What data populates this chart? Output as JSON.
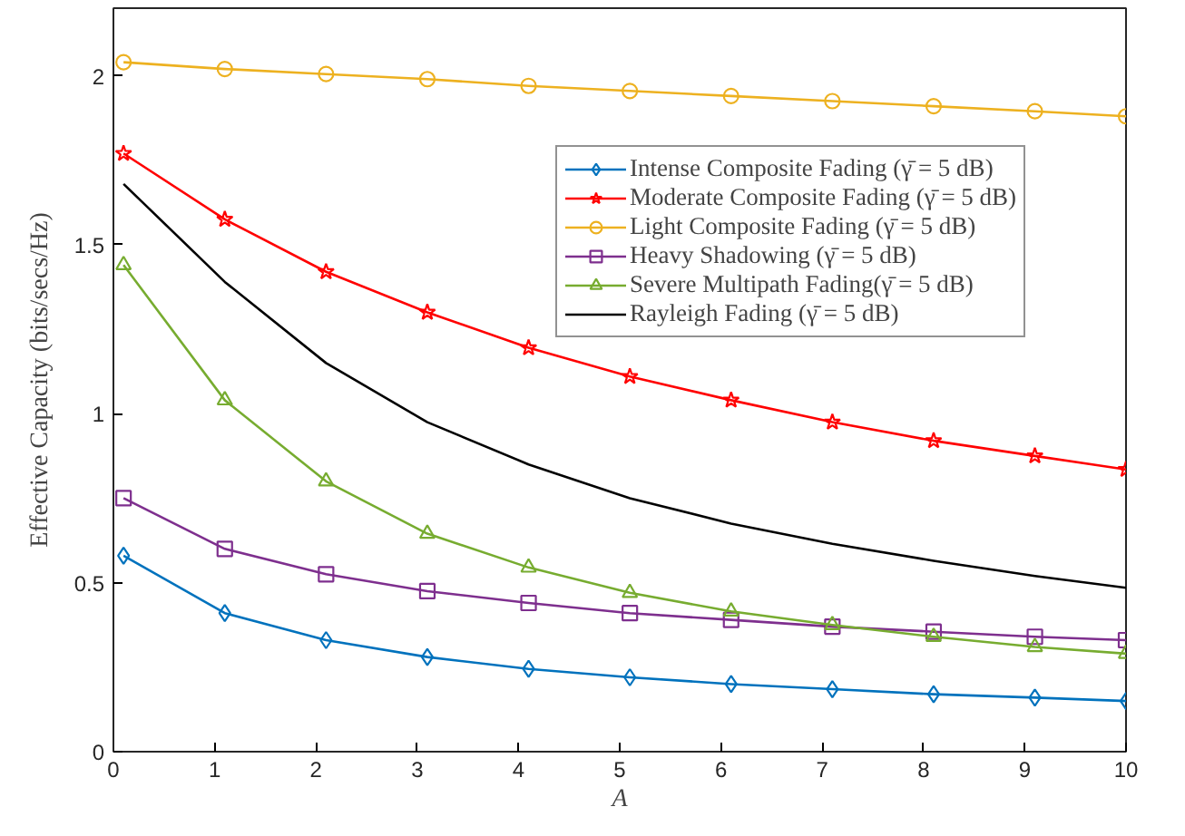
{
  "chart_data": {
    "type": "line",
    "xlabel": "A",
    "ylabel": "Effective Capacity (bits/secs/Hz)",
    "x": [
      0.1,
      1.1,
      2.1,
      3.1,
      4.1,
      5.1,
      6.1,
      7.1,
      8.1,
      9.1,
      10
    ],
    "series": [
      {
        "name": "Intense Composite Fading (γ̄ = 5 dB)",
        "color": "#0072bd",
        "marker": "diamond",
        "values": [
          0.58,
          0.41,
          0.33,
          0.28,
          0.245,
          0.22,
          0.2,
          0.185,
          0.17,
          0.16,
          0.15
        ]
      },
      {
        "name": "Moderate Composite Fading (γ̄ = 5 dB)",
        "color": "#ff0000",
        "marker": "star",
        "values": [
          1.77,
          1.575,
          1.42,
          1.3,
          1.195,
          1.11,
          1.04,
          0.975,
          0.92,
          0.875,
          0.835
        ]
      },
      {
        "name": "Light Composite Fading (γ̄ = 5 dB)",
        "color": "#edb120",
        "marker": "circle",
        "values": [
          2.04,
          2.02,
          2.005,
          1.99,
          1.97,
          1.955,
          1.94,
          1.925,
          1.91,
          1.895,
          1.88
        ]
      },
      {
        "name": "Heavy Shadowing (γ̄ = 5 dB)",
        "color": "#7e2f8e",
        "marker": "square",
        "values": [
          0.75,
          0.6,
          0.525,
          0.475,
          0.44,
          0.41,
          0.39,
          0.37,
          0.355,
          0.34,
          0.33
        ]
      },
      {
        "name": "Severe Multipath Fading(γ̄ = 5 dB)",
        "color": "#77ac30",
        "marker": "triangle",
        "values": [
          1.44,
          1.04,
          0.8,
          0.645,
          0.545,
          0.47,
          0.415,
          0.375,
          0.34,
          0.31,
          0.29
        ]
      },
      {
        "name": "Rayleigh Fading (γ̄ = 5 dB)",
        "color": "#000000",
        "marker": "none",
        "values": [
          1.68,
          1.39,
          1.15,
          0.975,
          0.85,
          0.75,
          0.675,
          0.615,
          0.565,
          0.52,
          0.485
        ]
      }
    ],
    "xlim": [
      0,
      10
    ],
    "xticks": [
      0,
      1,
      2,
      3,
      4,
      5,
      6,
      7,
      8,
      9,
      10
    ],
    "ylim": [
      0,
      2.2
    ],
    "yticks": [
      0,
      0.5,
      1,
      1.5,
      2
    ],
    "grid": false,
    "legend": "top right"
  }
}
